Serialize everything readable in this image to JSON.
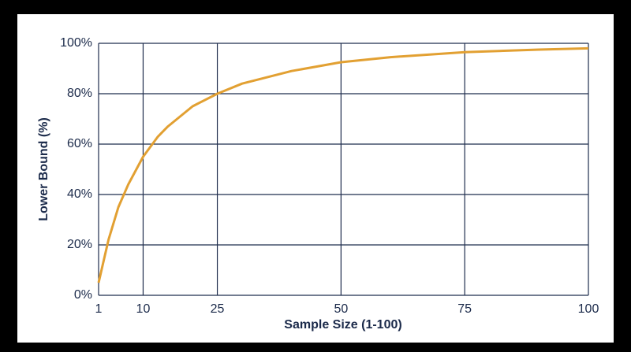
{
  "chart_data": {
    "type": "line",
    "x_label": "Sample Size (1-100)",
    "y_label": "Lower Bound (%)",
    "x": [
      1,
      3,
      5,
      7,
      10,
      13,
      15,
      20,
      25,
      30,
      40,
      50,
      60,
      75,
      90,
      100
    ],
    "series": [
      {
        "name": "Lower Bound",
        "color": "#e2a032",
        "values": [
          5,
          22,
          35,
          44,
          55,
          63,
          67,
          75,
          80,
          84,
          89,
          92.5,
          94.5,
          96.5,
          97.5,
          98
        ]
      }
    ],
    "xlim": [
      1,
      100
    ],
    "xticks": [
      1,
      10,
      25,
      50,
      75,
      100
    ],
    "ylim": [
      0,
      100
    ],
    "yticks": [
      {
        "value": 0,
        "label": "0%"
      },
      {
        "value": 20,
        "label": "20%"
      },
      {
        "value": 40,
        "label": "40%"
      },
      {
        "value": 60,
        "label": "60%"
      },
      {
        "value": 80,
        "label": "80%"
      },
      {
        "value": 100,
        "label": "100%"
      }
    ],
    "grid": true
  }
}
